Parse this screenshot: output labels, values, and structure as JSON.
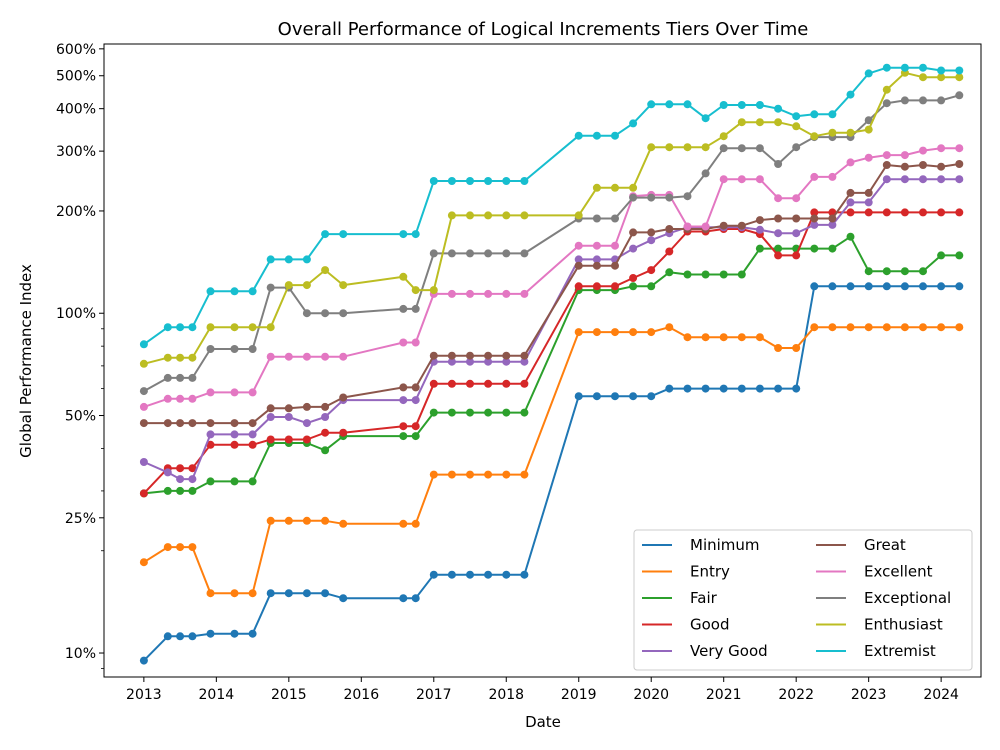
{
  "chart_data": {
    "type": "line",
    "title": "Overall Performance of Logical Increments Tiers Over Time",
    "xlabel": "Date",
    "ylabel": "Global Performance Index",
    "yscale": "log",
    "ylim": [
      8.5,
      620
    ],
    "xlim": [
      2012.45,
      2024.55
    ],
    "xticks": [
      2013,
      2014,
      2015,
      2016,
      2017,
      2018,
      2019,
      2020,
      2021,
      2022,
      2023,
      2024
    ],
    "xtick_labels": [
      "2013",
      "2014",
      "2015",
      "2016",
      "2017",
      "2018",
      "2019",
      "2020",
      "2021",
      "2022",
      "2023",
      "2024"
    ],
    "yticks": [
      10,
      25,
      50,
      100,
      200,
      300,
      400,
      500,
      600
    ],
    "ytick_labels": [
      "10%",
      "25%",
      "50%",
      "100%",
      "200%",
      "300%",
      "400%",
      "500%",
      "600%"
    ],
    "grid": false,
    "legend_position": "bottom-right",
    "legend_columns": 2,
    "x": [
      2013.0,
      2013.33,
      2013.5,
      2013.67,
      2013.92,
      2014.25,
      2014.5,
      2014.75,
      2015.0,
      2015.25,
      2015.5,
      2015.75,
      2016.58,
      2016.75,
      2017.0,
      2017.25,
      2017.5,
      2017.75,
      2018.0,
      2018.25,
      2019.0,
      2019.25,
      2019.5,
      2019.75,
      2020.0,
      2020.25,
      2020.5,
      2020.75,
      2021.0,
      2021.25,
      2021.5,
      2021.75,
      2022.0,
      2022.25,
      2022.5,
      2022.75,
      2023.0,
      2023.25,
      2023.5,
      2023.75,
      2024.0,
      2024.25
    ],
    "series": [
      {
        "name": "Minimum",
        "color": "#1f77b4",
        "values": [
          9.5,
          11.2,
          11.2,
          11.2,
          11.4,
          11.4,
          11.4,
          15.0,
          15.0,
          15.0,
          15.0,
          14.5,
          14.5,
          14.5,
          17.0,
          17.0,
          17.0,
          17.0,
          17.0,
          17.0,
          57,
          57,
          57,
          57,
          57,
          60,
          60,
          60,
          60,
          60,
          60,
          60,
          60,
          120,
          120,
          120,
          120,
          120,
          120,
          120,
          120,
          120
        ]
      },
      {
        "name": "Entry",
        "color": "#ff7f0e",
        "values": [
          18.5,
          20.5,
          20.5,
          20.5,
          15.0,
          15.0,
          15.0,
          24.5,
          24.5,
          24.5,
          24.5,
          24.0,
          24.0,
          24.0,
          33.5,
          33.5,
          33.5,
          33.5,
          33.5,
          33.5,
          88,
          88,
          88,
          88,
          88,
          91,
          85,
          85,
          85,
          85,
          85,
          79,
          79,
          91,
          91,
          91,
          91,
          91,
          91,
          91,
          91,
          91
        ]
      },
      {
        "name": "Fair",
        "color": "#2ca02c",
        "values": [
          29.5,
          30,
          30,
          30,
          32.0,
          32.0,
          32.0,
          41.5,
          41.5,
          41.5,
          39.5,
          43.5,
          43.5,
          43.5,
          51,
          51,
          51,
          51,
          51,
          51,
          117,
          117,
          117,
          120,
          120,
          132,
          130,
          130,
          130,
          130,
          155,
          155,
          155,
          155,
          155,
          168,
          133,
          133,
          133,
          133,
          148,
          148
        ]
      },
      {
        "name": "Good",
        "color": "#d62728",
        "values": [
          29.5,
          35,
          35,
          35,
          41,
          41,
          41,
          42.5,
          42.5,
          42.5,
          44.5,
          44.5,
          46.5,
          46.5,
          62,
          62,
          62,
          62,
          62,
          62,
          120,
          120,
          120,
          127,
          134,
          152,
          174,
          174,
          177,
          177,
          171,
          148,
          148,
          198,
          198,
          198,
          198,
          198,
          198,
          198,
          198,
          198
        ]
      },
      {
        "name": "Very Good",
        "color": "#9467bd",
        "values": [
          36.5,
          34.0,
          32.5,
          32.5,
          44.0,
          44.0,
          44.0,
          49.5,
          49.5,
          47.5,
          49.5,
          55.5,
          55.5,
          55.5,
          72,
          72,
          72,
          72,
          72,
          72,
          144,
          144,
          144,
          155,
          164,
          172,
          179,
          179,
          179,
          179,
          176,
          172,
          172,
          182,
          182,
          212,
          212,
          248,
          248,
          248,
          248,
          248
        ]
      },
      {
        "name": "Great",
        "color": "#8c564b",
        "values": [
          47.5,
          47.5,
          47.5,
          47.5,
          47.5,
          47.5,
          47.5,
          52.5,
          52.5,
          53,
          53,
          56.5,
          60.5,
          60.5,
          75,
          75,
          75,
          75,
          75,
          75,
          138,
          138,
          138,
          173,
          173,
          177,
          177,
          177,
          181,
          181,
          188,
          190,
          190,
          190,
          190,
          226,
          226,
          273,
          270,
          273,
          270,
          275
        ]
      },
      {
        "name": "Excellent",
        "color": "#e377c2",
        "values": [
          53,
          56,
          56,
          56,
          58.5,
          58.5,
          58.5,
          74.5,
          74.5,
          74.5,
          74.5,
          74.5,
          82,
          82,
          114,
          114,
          114,
          114,
          114,
          114,
          158,
          158,
          158,
          221,
          223,
          223,
          180,
          180,
          248,
          248,
          248,
          218,
          218,
          252,
          252,
          278,
          287,
          292,
          292,
          301,
          306,
          306
        ]
      },
      {
        "name": "Exceptional",
        "color": "#7f7f7f",
        "values": [
          59,
          64.5,
          64.5,
          64.5,
          78.5,
          78.5,
          78.5,
          119,
          119,
          100,
          100,
          100,
          103,
          103,
          150,
          150,
          150,
          150,
          150,
          150,
          190,
          190,
          190,
          219,
          219,
          219,
          221,
          258,
          306,
          306,
          306,
          275,
          308,
          330,
          330,
          330,
          370,
          415,
          423,
          423,
          423,
          438
        ]
      },
      {
        "name": "Enthusiast",
        "color": "#bcbd22",
        "values": [
          71,
          74,
          74,
          74,
          91,
          91,
          91,
          91,
          121,
          121,
          134,
          121,
          128,
          117,
          117,
          194,
          194,
          194,
          194,
          194,
          194,
          234,
          234,
          234,
          308,
          308,
          308,
          308,
          332,
          365,
          365,
          365,
          355,
          332,
          340,
          340,
          347,
          455,
          510,
          495,
          495,
          495
        ]
      },
      {
        "name": "Extremist",
        "color": "#17becf",
        "values": [
          81,
          91,
          91,
          91,
          116,
          116,
          116,
          144,
          144,
          144,
          171,
          171,
          171,
          171,
          245,
          245,
          245,
          245,
          245,
          245,
          333,
          333,
          333,
          362,
          412,
          412,
          412,
          375,
          410,
          410,
          410,
          400,
          380,
          385,
          385,
          440,
          508,
          528,
          528,
          528,
          518,
          518
        ]
      }
    ]
  }
}
